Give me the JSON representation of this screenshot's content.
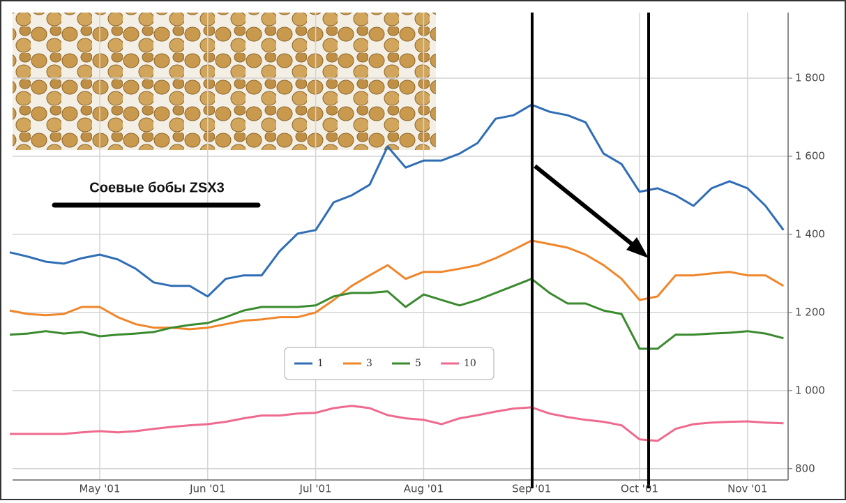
{
  "chart_data": {
    "type": "line",
    "title": "Соевые бобы ZSX3",
    "categories": [
      null,
      null,
      null,
      null,
      null,
      "May '01",
      null,
      null,
      null,
      null,
      null,
      "Jun '01",
      null,
      null,
      null,
      null,
      null,
      "Jul '01",
      null,
      null,
      null,
      null,
      null,
      "Aug '01",
      null,
      null,
      null,
      null,
      null,
      "Sep '01",
      null,
      null,
      null,
      null,
      null,
      "Oct '01",
      null,
      null,
      null,
      null,
      null,
      "Nov '01",
      null,
      null
    ],
    "series": [
      {
        "name": "1",
        "color": "#2f6db5",
        "values": [
          1354,
          1343,
          1330,
          1325,
          1339,
          1348,
          1336,
          1312,
          1277,
          1268,
          1268,
          1241,
          1286,
          1295,
          1295,
          1357,
          1402,
          1411,
          1482,
          1500,
          1527,
          1625,
          1571,
          1589,
          1589,
          1607,
          1634,
          1696,
          1705,
          1732,
          1714,
          1705,
          1687,
          1607,
          1580,
          1509,
          1518,
          1500,
          1473,
          1518,
          1536,
          1518,
          1473,
          1411
        ]
      },
      {
        "name": "3",
        "color": "#f0862a",
        "values": [
          1205,
          1196,
          1193,
          1196,
          1214,
          1214,
          1188,
          1170,
          1161,
          1161,
          1157,
          1161,
          1170,
          1179,
          1182,
          1188,
          1188,
          1200,
          1232,
          1268,
          1295,
          1321,
          1286,
          1304,
          1304,
          1312,
          1321,
          1339,
          1361,
          1384,
          1375,
          1366,
          1348,
          1321,
          1286,
          1232,
          1241,
          1295,
          1295,
          1300,
          1304,
          1295,
          1295,
          1268
        ]
      },
      {
        "name": "5",
        "color": "#3a8a2e",
        "values": [
          1143,
          1146,
          1152,
          1146,
          1150,
          1139,
          1143,
          1146,
          1150,
          1161,
          1168,
          1173,
          1188,
          1205,
          1214,
          1214,
          1214,
          1218,
          1241,
          1250,
          1250,
          1254,
          1214,
          1246,
          1232,
          1218,
          1232,
          1250,
          1268,
          1286,
          1250,
          1223,
          1223,
          1205,
          1196,
          1107,
          1107,
          1143,
          1143,
          1146,
          1148,
          1152,
          1146,
          1134
        ]
      },
      {
        "name": "10",
        "color": "#ee6a8e",
        "values": [
          889,
          889,
          889,
          889,
          893,
          896,
          893,
          896,
          902,
          907,
          911,
          914,
          920,
          929,
          936,
          936,
          941,
          943,
          955,
          961,
          955,
          937,
          929,
          925,
          914,
          929,
          937,
          946,
          954,
          957,
          941,
          932,
          925,
          920,
          911,
          875,
          871,
          902,
          914,
          918,
          920,
          921,
          918,
          916
        ]
      }
    ],
    "ylim": [
      771,
      1968
    ],
    "yticks": [
      {
        "value": 800,
        "label": "800"
      },
      {
        "value": 1000,
        "label": "1 000"
      },
      {
        "value": 1200,
        "label": "1 200"
      },
      {
        "value": 1400,
        "label": "1 400"
      },
      {
        "value": 1600,
        "label": "1 600"
      },
      {
        "value": 1800,
        "label": "1 800"
      }
    ],
    "grid": true
  }
}
